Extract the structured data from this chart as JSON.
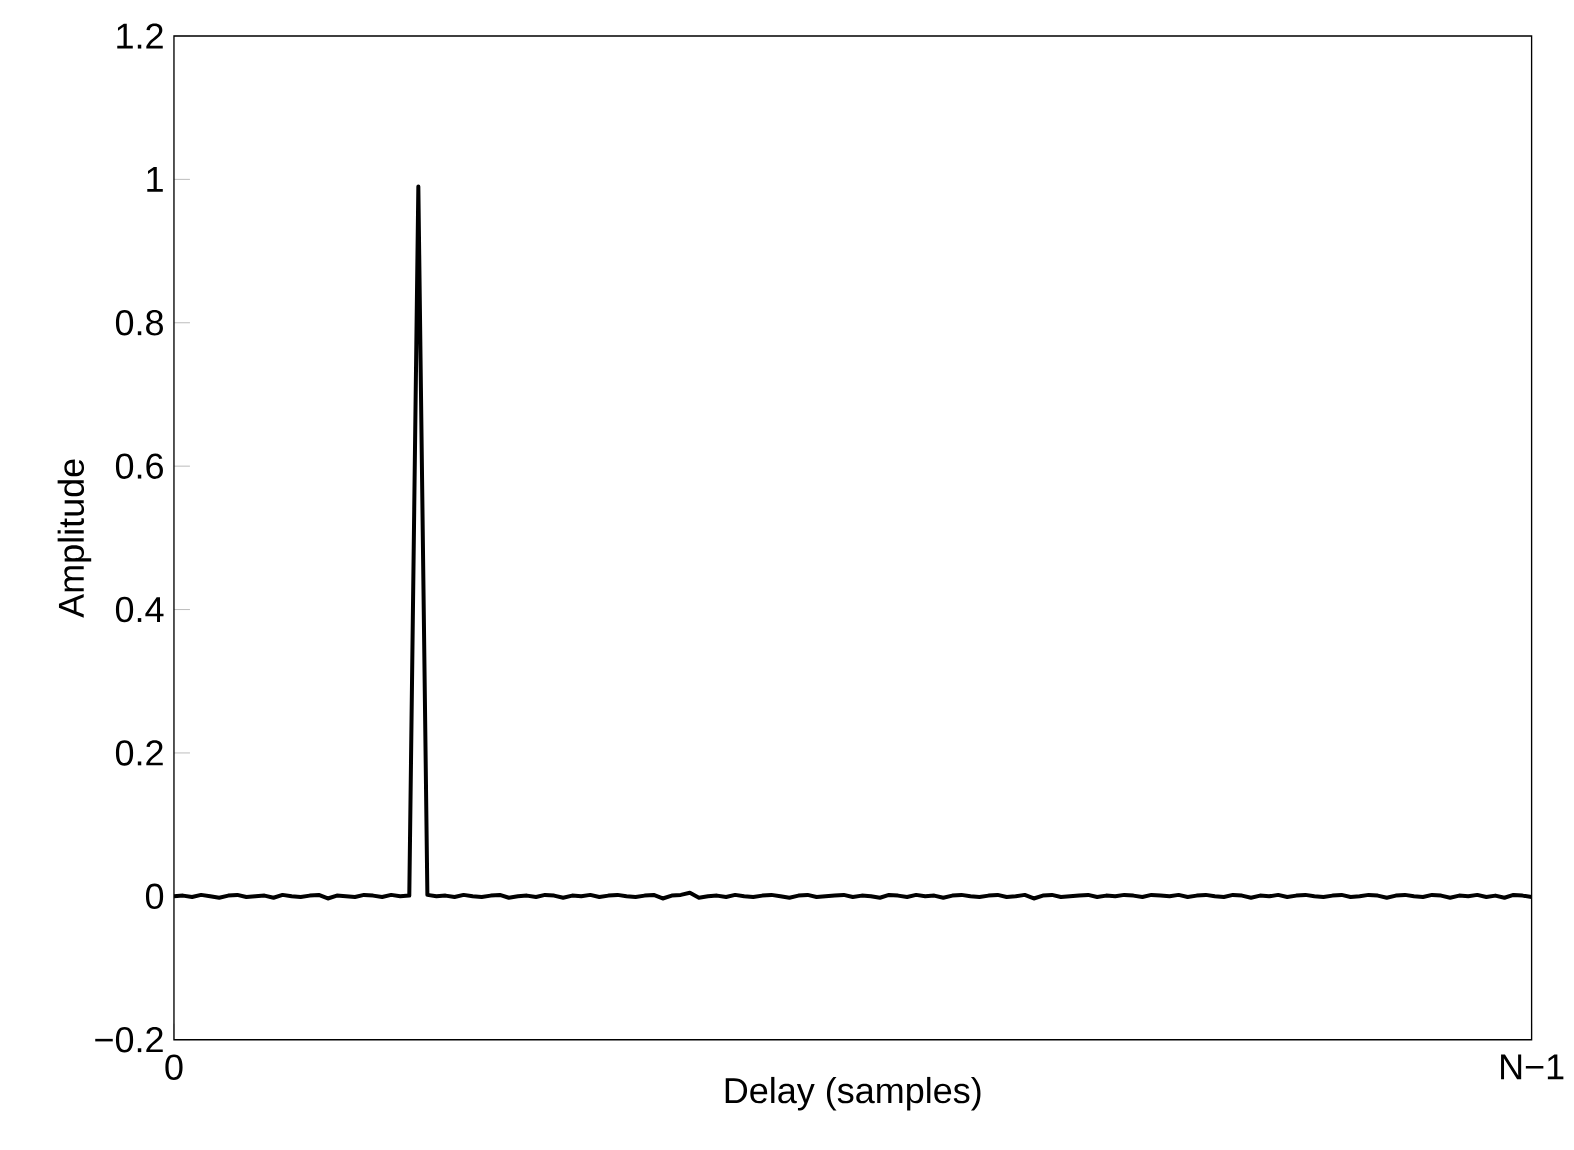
{
  "chart_data": {
    "type": "line",
    "xlabel": "Delay (samples)",
    "ylabel": "Amplitude",
    "categories": [
      "0",
      null,
      null,
      null,
      null,
      null,
      null,
      null,
      null,
      null,
      null,
      null,
      null,
      null,
      null,
      null,
      null,
      null,
      null,
      null,
      null,
      null,
      null,
      null,
      null,
      null,
      null,
      null,
      null,
      null,
      null,
      null,
      null,
      null,
      null,
      null,
      null,
      null,
      null,
      null,
      null,
      null,
      null,
      null,
      null,
      null,
      null,
      null,
      null,
      null,
      null,
      null,
      null,
      null,
      null,
      null,
      null,
      null,
      null,
      null,
      null,
      null,
      null,
      null,
      null,
      null,
      null,
      null,
      null,
      null,
      null,
      null,
      null,
      null,
      null,
      null,
      null,
      null,
      null,
      null,
      null,
      null,
      null,
      null,
      null,
      null,
      null,
      null,
      null,
      null,
      null,
      null,
      null,
      null,
      null,
      null,
      null,
      null,
      null,
      null,
      null,
      null,
      null,
      null,
      null,
      null,
      null,
      null,
      null,
      null,
      null,
      null,
      null,
      null,
      null,
      null,
      null,
      null,
      null,
      null,
      null,
      null,
      null,
      null,
      null,
      null,
      null,
      null,
      null,
      null,
      null,
      null,
      null,
      null,
      null,
      null,
      null,
      null,
      null,
      null,
      null,
      null,
      null,
      null,
      null,
      null,
      null,
      null,
      null,
      null,
      "N−1"
    ],
    "ylim": [
      -0.2,
      1.2
    ],
    "yticks": [
      {
        "value": -0.2,
        "label": "−0.2"
      },
      0,
      0.2,
      0.4,
      0.6,
      0.8,
      1,
      1.2
    ],
    "marker": "none",
    "line_style": "solid",
    "series": [
      {
        "color": "#000000",
        "values": [
          0,
          0.001,
          -0.001,
          0.002,
          0,
          -0.002,
          0.001,
          0.002,
          -0.001,
          0,
          0.001,
          -0.002,
          0.002,
          0,
          -0.001,
          0.001,
          0.002,
          -0.003,
          0.001,
          0,
          -0.001,
          0.002,
          0.001,
          -0.001,
          0.002,
          0,
          0.001,
          0.99,
          0.002,
          0,
          0.001,
          -0.001,
          0.002,
          0,
          -0.001,
          0.001,
          0.002,
          -0.002,
          0,
          0.001,
          -0.001,
          0.002,
          0.001,
          -0.002,
          0.001,
          0,
          0.002,
          -0.001,
          0.001,
          0.002,
          0,
          -0.001,
          0.001,
          0.002,
          -0.003,
          0.001,
          0.002,
          0.005,
          -0.002,
          0,
          0.001,
          -0.001,
          0.002,
          0,
          -0.001,
          0.001,
          0.002,
          0,
          -0.002,
          0.001,
          0.002,
          -0.001,
          0,
          0.001,
          0.002,
          -0.001,
          0.001,
          0,
          -0.002,
          0.002,
          0.001,
          -0.001,
          0.002,
          0,
          0.001,
          -0.002,
          0.001,
          0.002,
          0,
          -0.001,
          0.001,
          0.002,
          -0.001,
          0,
          0.002,
          -0.003,
          0.001,
          0.002,
          -0.001,
          0,
          0.001,
          0.002,
          -0.001,
          0.001,
          0,
          0.002,
          0.001,
          -0.001,
          0.002,
          0.001,
          0,
          0.002,
          -0.001,
          0.001,
          0.002,
          0,
          -0.001,
          0.002,
          0.001,
          -0.002,
          0.001,
          0,
          0.002,
          -0.001,
          0.001,
          0.002,
          0,
          -0.001,
          0.001,
          0.002,
          -0.001,
          0,
          0.002,
          0.001,
          -0.002,
          0.001,
          0.002,
          0,
          -0.001,
          0.002,
          0.001,
          -0.002,
          0.001,
          0,
          0.002,
          -0.001,
          0.001,
          -0.002,
          0.002,
          0.001,
          -0.001
        ]
      }
    ]
  }
}
